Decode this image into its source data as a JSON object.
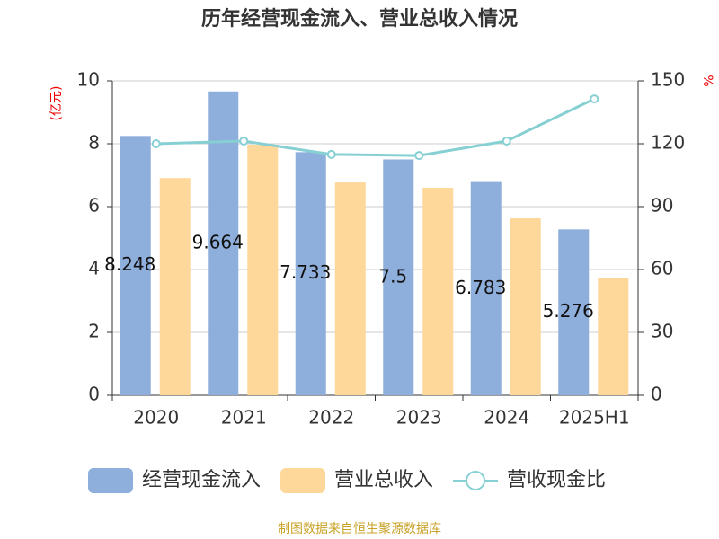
{
  "chart_data": {
    "type": "bar_line",
    "title": "历年经营现金流入、营业总收入情况",
    "y_label": "(亿元)",
    "y2_label": "%",
    "categories": [
      "2020",
      "2021",
      "2022",
      "2023",
      "2024",
      "2025H1"
    ],
    "series": [
      {
        "name": "经营现金流入",
        "type": "bar",
        "color": "#8eaedb",
        "values": [
          8.248,
          9.664,
          7.733,
          7.5,
          6.783,
          5.276
        ]
      },
      {
        "name": "营业总收入",
        "type": "bar",
        "color": "#fed89a",
        "values": [
          6.91,
          7.97,
          6.77,
          6.6,
          5.63,
          3.74
        ]
      },
      {
        "name": "营收现金比",
        "type": "line",
        "axis": "y2",
        "color": "#86d0d3",
        "values": [
          120,
          121.3,
          114.9,
          114.4,
          121.3,
          141.4
        ]
      }
    ],
    "ylim": [
      0,
      10
    ],
    "yticks": [
      0,
      2,
      4,
      6,
      8,
      10
    ],
    "y2lim": [
      0,
      150
    ],
    "y2ticks": [
      0,
      30,
      60,
      90,
      120,
      150
    ],
    "grid": true,
    "source": "制图数据来自恒生聚源数据库"
  }
}
